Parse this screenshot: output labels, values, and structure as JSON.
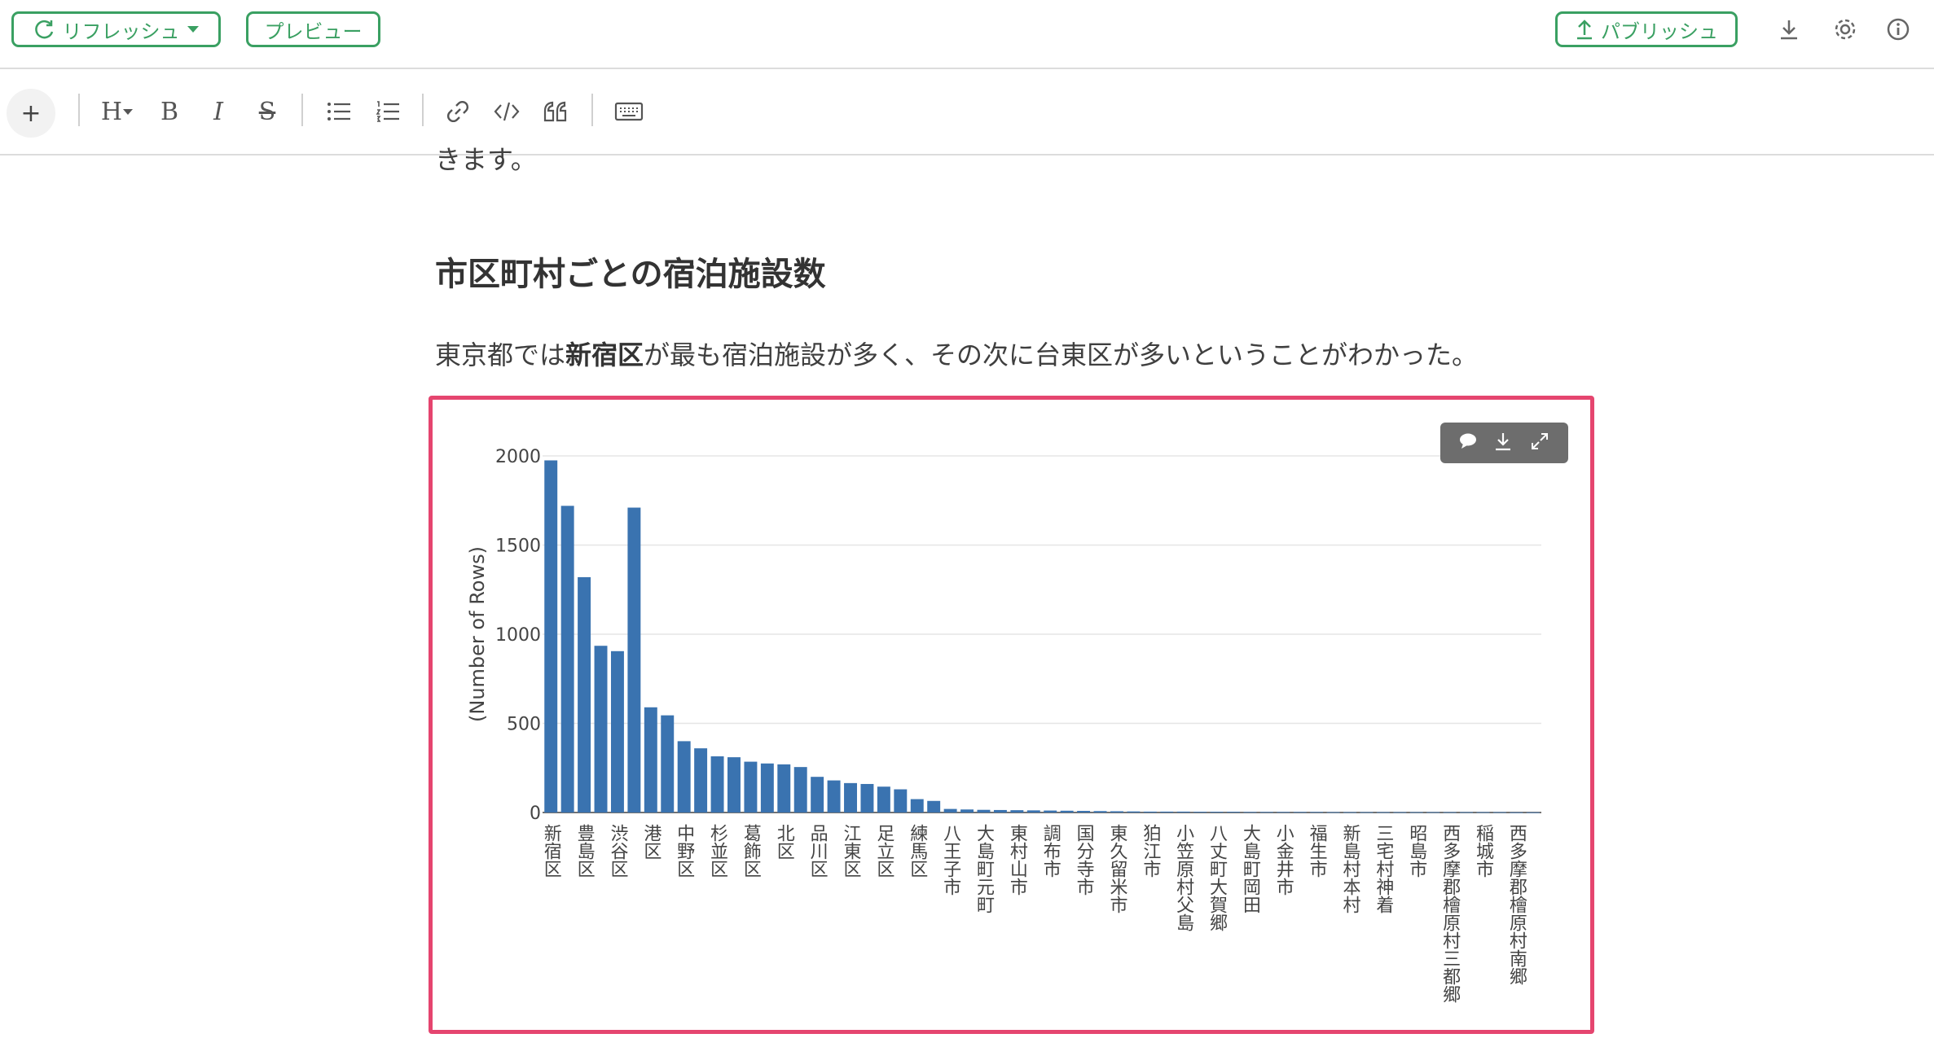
{
  "topbar": {
    "refresh_label": "リフレッシュ",
    "preview_label": "プレビュー",
    "publish_label": "パブリッシュ",
    "accent_color": "#3aa062",
    "icons": [
      "refresh-icon",
      "caret-down-icon",
      "upload-icon",
      "download-icon",
      "gear-icon",
      "info-icon"
    ]
  },
  "toolbar": {
    "plus_label": "+",
    "heading_label": "H",
    "bold_label": "B",
    "italic_label": "I",
    "strike_label": "S",
    "icons": [
      "bullet-list-icon",
      "numbered-list-icon",
      "link-icon",
      "code-icon",
      "quote-icon",
      "keyboard-icon"
    ]
  },
  "content": {
    "partial_text": "きます。",
    "heading": "市区町村ごとの宿泊施設数",
    "paragraph_pre": "東京都では",
    "paragraph_bold": "新宿区",
    "paragraph_post": "が最も宿泊施設が多く、その次に台東区が多いということがわかった。"
  },
  "chart_toolbar": {
    "icons": [
      "comment-icon",
      "download-icon",
      "expand-icon"
    ]
  },
  "chart_data": {
    "type": "bar",
    "ylabel": "(Number of Rows)",
    "xlabel": "",
    "ylim": [
      0,
      2000
    ],
    "yticks": [
      0,
      500,
      1000,
      1500,
      2000
    ],
    "grid": true,
    "bar_color": "#3a73b0",
    "frame_color": "#e5456f",
    "x_labels": [
      "新宿区",
      "豊島区",
      "渋谷区",
      "港区",
      "中野区",
      "杉並区",
      "葛飾区",
      "北区",
      "品川区",
      "江東区",
      "足立区",
      "練馬区",
      "八王子市",
      "大島町元町",
      "東村山市",
      "調布市",
      "国分寺市",
      "東久留米市",
      "狛江市",
      "小笠原村父島",
      "八丈町大賀郷",
      "大島町岡田",
      "小金井市",
      "福生市",
      "新島村本村",
      "三宅村神着",
      "昭島市",
      "西多摩郡檜原村三都郷",
      "稲城市",
      "西多摩郡檜原村南郷"
    ],
    "values": [
      1975,
      1720,
      1320,
      935,
      905,
      1710,
      590,
      545,
      400,
      360,
      315,
      310,
      285,
      275,
      270,
      255,
      200,
      180,
      165,
      160,
      145,
      130,
      75,
      65,
      20,
      17,
      15,
      14,
      13,
      12,
      11,
      10,
      9,
      8,
      7,
      6,
      5,
      5,
      5,
      4,
      4,
      4,
      3,
      3,
      3,
      3,
      3,
      2,
      2,
      2,
      2,
      2,
      2,
      2,
      2,
      2,
      2,
      2,
      1,
      1
    ]
  }
}
